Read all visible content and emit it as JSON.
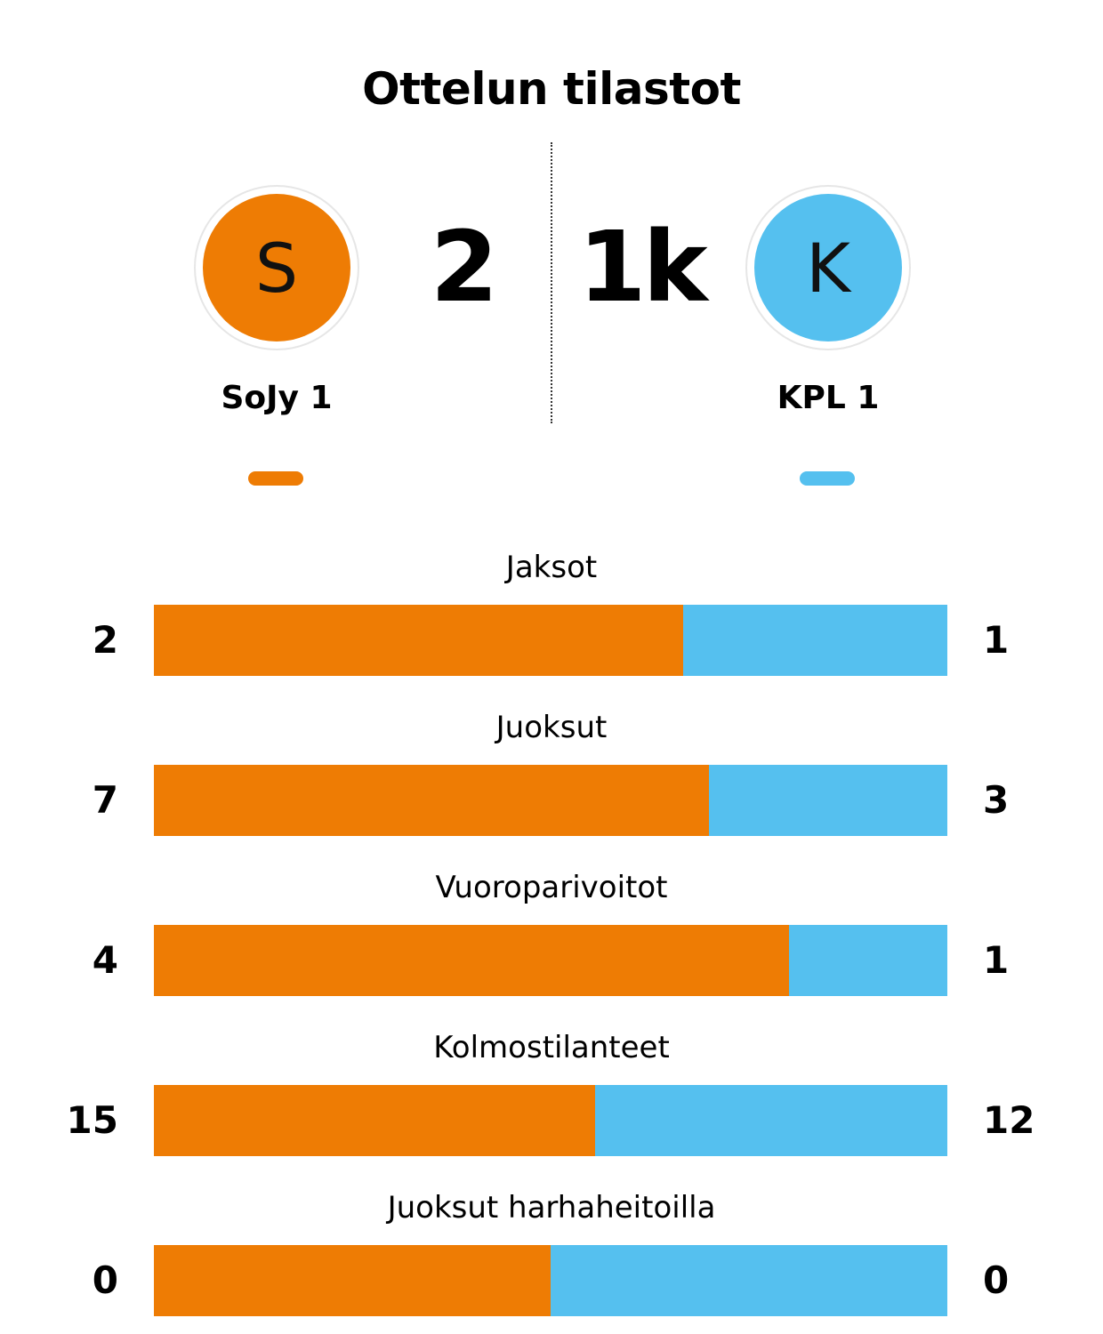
{
  "title": "Ottelun tilastot",
  "colors": {
    "home": "#ee7c04",
    "away": "#55c0ef"
  },
  "home": {
    "name": "SoJy 1",
    "initial": "S",
    "score": "2"
  },
  "away": {
    "name": "KPL 1",
    "initial": "K",
    "score": "1k"
  },
  "chart_data": {
    "type": "bar",
    "orientation": "horizontal-stacked-share",
    "categories": [
      "Jaksot",
      "Juoksut",
      "Vuoroparivoitot",
      "Kolmostilanteet",
      "Juoksut harhaheitoilla"
    ],
    "series": [
      {
        "name": "SoJy 1",
        "values": [
          2,
          7,
          4,
          15,
          0
        ]
      },
      {
        "name": "KPL 1",
        "values": [
          1,
          3,
          1,
          12,
          0
        ]
      }
    ]
  }
}
